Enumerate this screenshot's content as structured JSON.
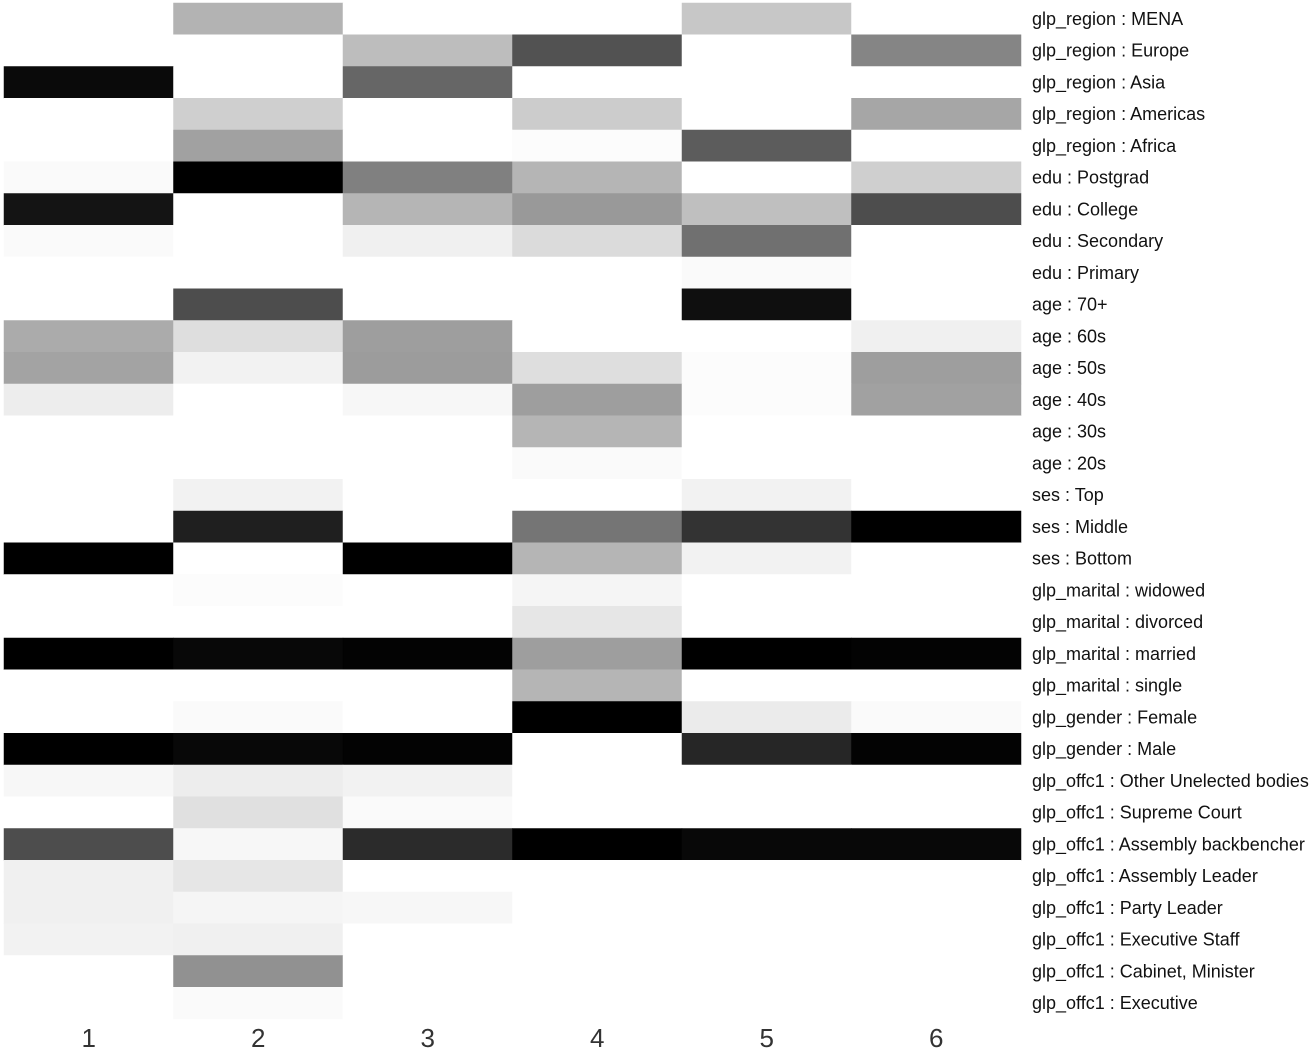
{
  "chart_data": {
    "type": "heatmap",
    "title": "",
    "xlabel": "",
    "ylabel": "",
    "columns": [
      "1",
      "2",
      "3",
      "4",
      "5",
      "6"
    ],
    "rows": [
      "glp_region : MENA",
      "glp_region : Europe",
      "glp_region : Asia",
      "glp_region : Americas",
      "glp_region : Africa",
      "edu : Postgrad",
      "edu : College",
      "edu : Secondary",
      "edu : Primary",
      "age : 70+",
      "age : 60s",
      "age : 50s",
      "age : 40s",
      "age : 30s",
      "age : 20s",
      "ses : Top",
      "ses : Middle",
      "ses : Bottom",
      "glp_marital : widowed",
      "glp_marital : divorced",
      "glp_marital : married",
      "glp_marital : single",
      "glp_gender : Female",
      "glp_gender : Male",
      "glp_offc1 : Other Unelected bodies",
      "glp_offc1 : Supreme Court",
      "glp_offc1 : Assembly backbencher",
      "glp_offc1 : Assembly Leader",
      "glp_offc1 : Party Leader",
      "glp_offc1 : Executive Staff",
      "glp_offc1 : Cabinet, Minister",
      "glp_offc1 : Executive"
    ],
    "values": [
      [
        0.0,
        0.3,
        0.0,
        0.0,
        0.22,
        0.0
      ],
      [
        0.0,
        0.0,
        0.26,
        0.68,
        0.0,
        0.48
      ],
      [
        0.96,
        0.0,
        0.6,
        0.0,
        0.0,
        0.0
      ],
      [
        0.0,
        0.19,
        0.0,
        0.2,
        0.0,
        0.35
      ],
      [
        0.0,
        0.37,
        0.0,
        0.01,
        0.64,
        0.0
      ],
      [
        0.02,
        1.0,
        0.5,
        0.29,
        0.0,
        0.19
      ],
      [
        0.92,
        0.0,
        0.29,
        0.4,
        0.25,
        0.7
      ],
      [
        0.02,
        0.0,
        0.06,
        0.14,
        0.56,
        0.0
      ],
      [
        0.0,
        0.0,
        0.0,
        0.0,
        0.02,
        0.0
      ],
      [
        0.0,
        0.7,
        0.0,
        0.0,
        0.94,
        0.0
      ],
      [
        0.33,
        0.13,
        0.38,
        0.0,
        0.0,
        0.06
      ],
      [
        0.36,
        0.05,
        0.39,
        0.13,
        0.01,
        0.38
      ],
      [
        0.07,
        0.0,
        0.03,
        0.38,
        0.01,
        0.37
      ],
      [
        0.0,
        0.0,
        0.0,
        0.29,
        0.0,
        0.0
      ],
      [
        0.0,
        0.0,
        0.0,
        0.02,
        0.0,
        0.0
      ],
      [
        0.0,
        0.05,
        0.0,
        0.0,
        0.05,
        0.0
      ],
      [
        0.0,
        0.88,
        0.0,
        0.54,
        0.8,
        1.0
      ],
      [
        1.0,
        0.0,
        1.0,
        0.29,
        0.05,
        0.0
      ],
      [
        0.0,
        0.01,
        0.0,
        0.04,
        0.0,
        0.0
      ],
      [
        0.0,
        0.0,
        0.0,
        0.1,
        0.0,
        0.0
      ],
      [
        1.0,
        0.97,
        0.99,
        0.38,
        1.0,
        0.99
      ],
      [
        0.0,
        0.0,
        0.0,
        0.29,
        0.0,
        0.0
      ],
      [
        0.0,
        0.02,
        0.0,
        1.0,
        0.08,
        0.02
      ],
      [
        1.0,
        0.97,
        0.99,
        0.0,
        0.85,
        0.99
      ],
      [
        0.03,
        0.07,
        0.05,
        0.0,
        0.0,
        0.0
      ],
      [
        0.0,
        0.12,
        0.02,
        0.0,
        0.0,
        0.0
      ],
      [
        0.7,
        0.03,
        0.83,
        1.0,
        0.97,
        0.97
      ],
      [
        0.06,
        0.1,
        0.0,
        0.0,
        0.0,
        0.0
      ],
      [
        0.06,
        0.04,
        0.03,
        0.0,
        0.0,
        0.0
      ],
      [
        0.05,
        0.06,
        0.0,
        0.0,
        0.0,
        0.0
      ],
      [
        0.0,
        0.43,
        0.0,
        0.0,
        0.0,
        0.0
      ],
      [
        0.0,
        0.02,
        0.0,
        0.0,
        0.0,
        0.0
      ]
    ],
    "value_range": [
      0,
      1
    ],
    "colormap": {
      "low": "#ffffff",
      "high": "#000000"
    },
    "grid": false,
    "legend": "none"
  }
}
